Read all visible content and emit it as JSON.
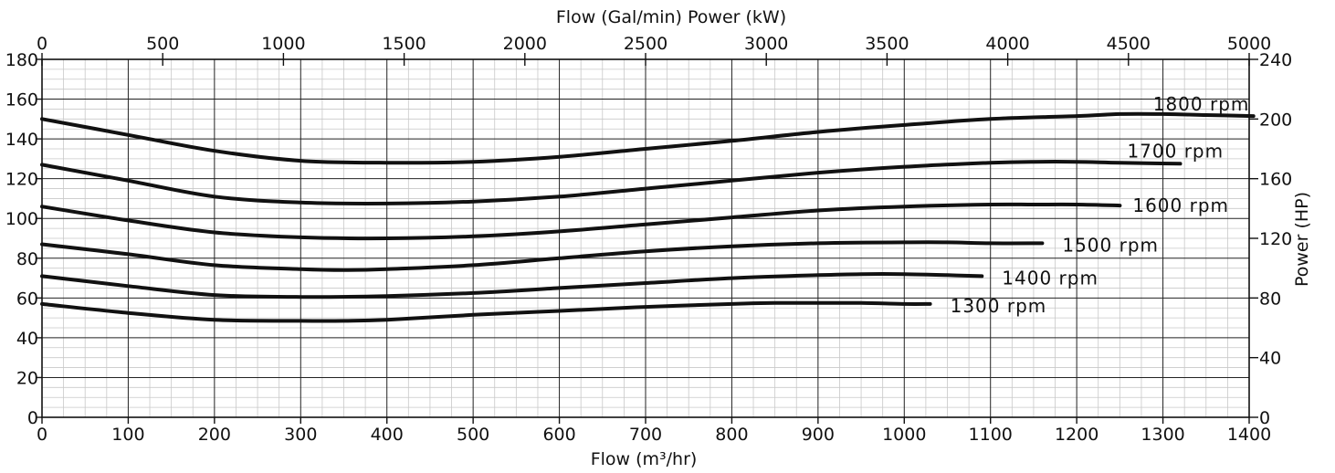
{
  "chart_data": {
    "type": "line",
    "xlabel_bottom": "Flow (m³/hr)",
    "xlabel_top": "Flow (Gal/min) Power (kW)",
    "ylabel_right": "Power (HP)",
    "xlim_bottom": [
      0,
      1400
    ],
    "xlim_top": [
      0,
      5000
    ],
    "ylim_left": [
      0,
      180
    ],
    "ylim_right": [
      0,
      240
    ],
    "x_ticks_bottom": [
      "0",
      "100",
      "200",
      "300",
      "400",
      "500",
      "600",
      "700",
      "800",
      "900",
      "1000",
      "1100",
      "1200",
      "1300",
      "1400"
    ],
    "x_ticks_top": [
      "0",
      "500",
      "1000",
      "1500",
      "2000",
      "2500",
      "3000",
      "3500",
      "4000",
      "4500",
      "5000"
    ],
    "y_ticks_left": [
      "0",
      "20",
      "40",
      "60",
      "80",
      "100",
      "120",
      "140",
      "160",
      "180"
    ],
    "y_ticks_right": [
      "0",
      "40",
      "80",
      "120",
      "160",
      "200",
      "240"
    ],
    "grid": true,
    "series": [
      {
        "name": "1800 rpm",
        "x": [
          0,
          100,
          200,
          300,
          400,
          500,
          600,
          700,
          800,
          900,
          1000,
          1100,
          1200,
          1250,
          1300,
          1350,
          1405
        ],
        "y": [
          150,
          142,
          134,
          129,
          128,
          128.5,
          131,
          135,
          139,
          143.5,
          147,
          150,
          151.5,
          152.5,
          152.5,
          152,
          151.5
        ]
      },
      {
        "name": "1700 rpm",
        "x": [
          0,
          100,
          200,
          300,
          400,
          500,
          600,
          700,
          800,
          900,
          1000,
          1100,
          1150,
          1200,
          1250,
          1320
        ],
        "y": [
          127,
          119,
          111,
          108,
          107.5,
          108.5,
          111,
          115,
          119,
          123,
          126,
          128,
          128.5,
          128.5,
          128,
          127.5
        ]
      },
      {
        "name": "1600 rpm",
        "x": [
          0,
          100,
          200,
          300,
          400,
          500,
          600,
          700,
          800,
          900,
          1000,
          1100,
          1150,
          1200,
          1250
        ],
        "y": [
          106,
          99,
          93,
          90.5,
          90,
          91,
          93.5,
          97,
          100.5,
          104,
          106,
          107,
          107,
          107,
          106.5
        ]
      },
      {
        "name": "1500 rpm",
        "x": [
          0,
          100,
          200,
          300,
          350,
          400,
          500,
          600,
          700,
          800,
          900,
          1000,
          1050,
          1100,
          1160
        ],
        "y": [
          87,
          82,
          76.5,
          74.5,
          74,
          74.5,
          76.5,
          80,
          83.5,
          86,
          87.5,
          88,
          88,
          87.5,
          87.5
        ]
      },
      {
        "name": "1400 rpm",
        "x": [
          0,
          100,
          200,
          300,
          400,
          500,
          600,
          700,
          800,
          900,
          950,
          1000,
          1050,
          1090
        ],
        "y": [
          71,
          66,
          61.5,
          60.5,
          61,
          62.5,
          65,
          67.5,
          70,
          71.5,
          72,
          72,
          71.5,
          71
        ]
      },
      {
        "name": "1300 rpm",
        "x": [
          0,
          100,
          200,
          300,
          350,
          400,
          500,
          600,
          700,
          800,
          850,
          900,
          950,
          1000,
          1030
        ],
        "y": [
          57,
          52.5,
          49,
          48.5,
          48.5,
          49,
          51.5,
          53.5,
          55.5,
          57,
          57.5,
          57.5,
          57.5,
          57,
          57
        ]
      }
    ]
  }
}
